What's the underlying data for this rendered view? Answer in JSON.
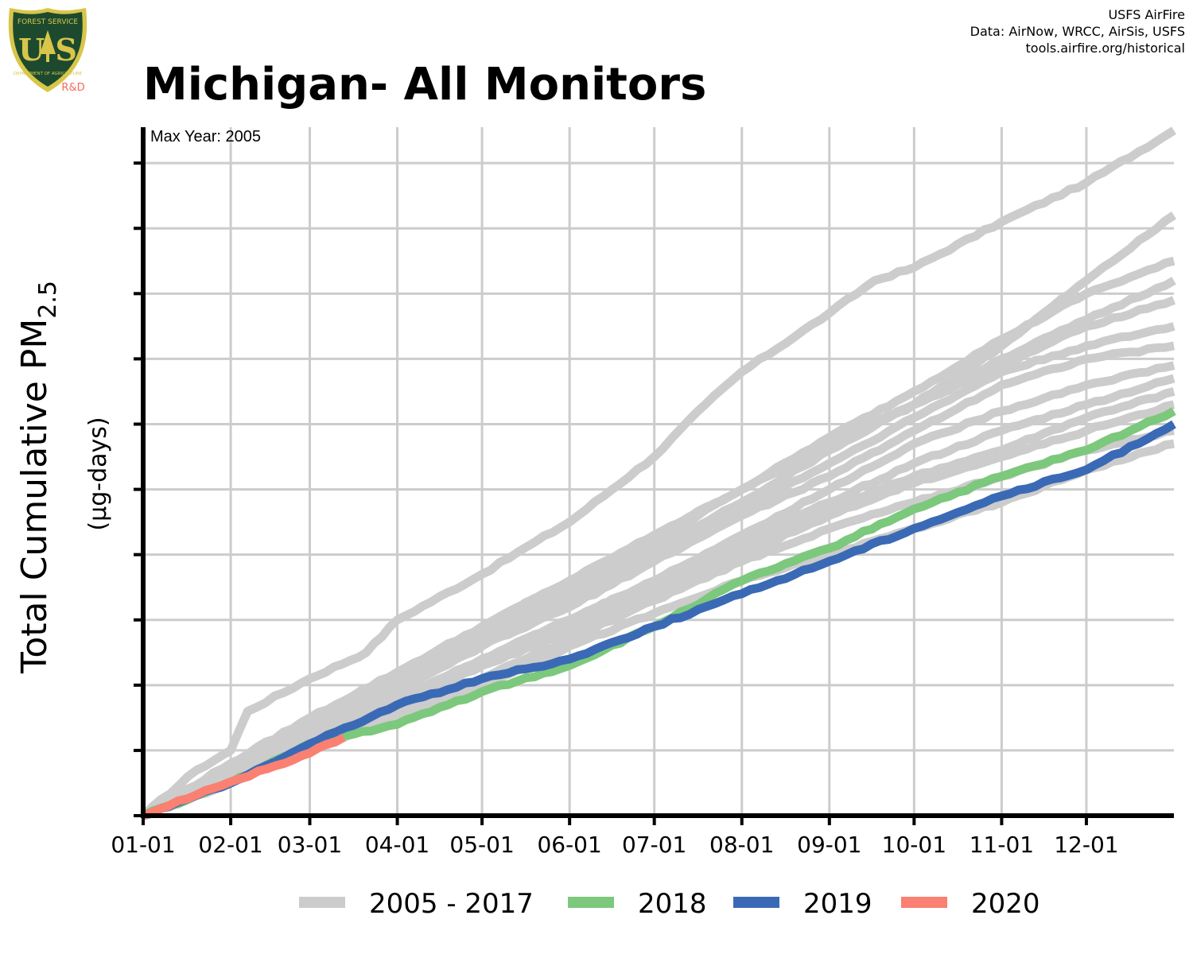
{
  "logo": {
    "arc_text_top": "FOREST SERVICE",
    "letters": "U S",
    "arc_text_bottom": "DEPARTMENT OF AGRICULTURE",
    "suffix": "R&D",
    "suffix_color": "#f26b5b",
    "shield_color": "#1d4a2e",
    "rim_color": "#d8c64a"
  },
  "title": "Michigan- All Monitors",
  "credits": [
    "USFS AirFire",
    "Data: AirNow, WRCC, AirSis, USFS",
    "tools.airfire.org/historical"
  ],
  "chart_data": {
    "type": "line",
    "title": "Michigan- All Monitors",
    "ylabel_main": "Total Cumulative PM",
    "ylabel_sub": "2.5",
    "yunits": "(µg-days)",
    "annotation": "Max Year: 2005",
    "x_tick_labels": [
      "01-01",
      "02-01",
      "03-01",
      "04-01",
      "05-01",
      "06-01",
      "07-01",
      "08-01",
      "09-01",
      "10-01",
      "11-01",
      "12-01"
    ],
    "x_tick_days": [
      1,
      32,
      60,
      91,
      121,
      152,
      182,
      213,
      244,
      274,
      305,
      335
    ],
    "xlim": [
      1,
      366
    ],
    "ylim": [
      0,
      1.055
    ],
    "y_ticks": [
      0,
      0.1,
      0.2,
      0.3,
      0.4,
      0.5,
      0.6,
      0.7,
      0.8,
      0.9,
      1.0
    ],
    "y_tick_labels_shown": false,
    "grid": true,
    "legend_position": "bottom",
    "legend": [
      {
        "label": "2005 - 2017",
        "color": "#cccccc"
      },
      {
        "label": "2018",
        "color": "#7cc87c"
      },
      {
        "label": "2019",
        "color": "#3a6ab5"
      },
      {
        "label": "2020",
        "color": "#fa8072"
      }
    ],
    "series": [
      {
        "group": "2005 - 2017",
        "color": "#cccccc",
        "x": [
          1,
          20,
          32,
          38,
          60,
          80,
          91,
          121,
          140,
          152,
          182,
          200,
          213,
          244,
          260,
          274,
          305,
          335,
          366
        ],
        "y": [
          0,
          0.07,
          0.1,
          0.16,
          0.21,
          0.25,
          0.3,
          0.37,
          0.42,
          0.45,
          0.55,
          0.63,
          0.68,
          0.77,
          0.82,
          0.84,
          0.91,
          0.97,
          1.05
        ]
      },
      {
        "group": "2005 - 2017",
        "color": "#cccccc",
        "x": [
          1,
          32,
          60,
          91,
          121,
          152,
          182,
          213,
          244,
          274,
          305,
          335,
          366
        ],
        "y": [
          0,
          0.07,
          0.14,
          0.21,
          0.29,
          0.36,
          0.43,
          0.5,
          0.57,
          0.63,
          0.72,
          0.82,
          0.92
        ]
      },
      {
        "group": "2005 - 2017",
        "color": "#cccccc",
        "x": [
          1,
          32,
          60,
          91,
          121,
          152,
          182,
          213,
          244,
          274,
          305,
          335,
          366
        ],
        "y": [
          0,
          0.08,
          0.15,
          0.22,
          0.29,
          0.36,
          0.43,
          0.5,
          0.58,
          0.65,
          0.73,
          0.8,
          0.85
        ]
      },
      {
        "group": "2005 - 2017",
        "color": "#cccccc",
        "x": [
          1,
          32,
          60,
          91,
          121,
          152,
          182,
          213,
          244,
          274,
          305,
          335,
          366
        ],
        "y": [
          0,
          0.07,
          0.14,
          0.2,
          0.28,
          0.35,
          0.42,
          0.5,
          0.57,
          0.63,
          0.7,
          0.76,
          0.82
        ]
      },
      {
        "group": "2005 - 2017",
        "color": "#cccccc",
        "x": [
          1,
          32,
          60,
          91,
          121,
          152,
          182,
          213,
          244,
          274,
          305,
          335,
          366
        ],
        "y": [
          0,
          0.07,
          0.14,
          0.21,
          0.27,
          0.34,
          0.41,
          0.48,
          0.56,
          0.63,
          0.69,
          0.75,
          0.79
        ]
      },
      {
        "group": "2005 - 2017",
        "color": "#cccccc",
        "x": [
          1,
          32,
          60,
          91,
          121,
          152,
          182,
          213,
          244,
          274,
          305,
          335,
          366
        ],
        "y": [
          0,
          0.07,
          0.13,
          0.2,
          0.26,
          0.33,
          0.4,
          0.47,
          0.54,
          0.61,
          0.68,
          0.72,
          0.75
        ]
      },
      {
        "group": "2005 - 2017",
        "color": "#cccccc",
        "x": [
          1,
          32,
          60,
          91,
          121,
          152,
          182,
          213,
          244,
          274,
          305,
          335,
          366
        ],
        "y": [
          0,
          0.07,
          0.13,
          0.19,
          0.26,
          0.32,
          0.39,
          0.46,
          0.52,
          0.59,
          0.66,
          0.7,
          0.72
        ]
      },
      {
        "group": "2005 - 2017",
        "color": "#cccccc",
        "x": [
          1,
          32,
          60,
          91,
          121,
          152,
          182,
          213,
          244,
          274,
          305,
          335,
          366
        ],
        "y": [
          0,
          0.06,
          0.12,
          0.18,
          0.24,
          0.3,
          0.36,
          0.43,
          0.5,
          0.57,
          0.62,
          0.66,
          0.69
        ]
      },
      {
        "group": "2005 - 2017",
        "color": "#cccccc",
        "x": [
          1,
          32,
          60,
          91,
          121,
          152,
          182,
          213,
          244,
          274,
          305,
          335,
          366
        ],
        "y": [
          0,
          0.06,
          0.12,
          0.18,
          0.24,
          0.3,
          0.36,
          0.42,
          0.48,
          0.54,
          0.59,
          0.63,
          0.67
        ]
      },
      {
        "group": "2005 - 2017",
        "color": "#cccccc",
        "x": [
          1,
          32,
          60,
          91,
          121,
          152,
          182,
          213,
          244,
          274,
          305,
          335,
          366
        ],
        "y": [
          0,
          0.06,
          0.12,
          0.17,
          0.23,
          0.29,
          0.35,
          0.41,
          0.47,
          0.52,
          0.56,
          0.61,
          0.65
        ]
      },
      {
        "group": "2005 - 2017",
        "color": "#cccccc",
        "x": [
          1,
          32,
          60,
          91,
          121,
          152,
          182,
          213,
          244,
          274,
          305,
          335,
          366
        ],
        "y": [
          0,
          0.06,
          0.11,
          0.17,
          0.23,
          0.28,
          0.34,
          0.4,
          0.46,
          0.51,
          0.55,
          0.59,
          0.63
        ]
      },
      {
        "group": "2005 - 2017",
        "color": "#cccccc",
        "x": [
          1,
          32,
          60,
          91,
          121,
          152,
          182,
          213,
          244,
          274,
          305,
          335,
          366
        ],
        "y": [
          0,
          0.06,
          0.11,
          0.16,
          0.21,
          0.27,
          0.33,
          0.39,
          0.44,
          0.48,
          0.52,
          0.56,
          0.59
        ]
      },
      {
        "group": "2005 - 2017",
        "color": "#cccccc",
        "x": [
          1,
          32,
          60,
          91,
          121,
          152,
          182,
          213,
          244,
          274,
          305,
          335,
          366
        ],
        "y": [
          0,
          0.05,
          0.1,
          0.15,
          0.2,
          0.26,
          0.31,
          0.36,
          0.4,
          0.44,
          0.48,
          0.53,
          0.57
        ]
      },
      {
        "group": "2018",
        "name": "2018",
        "color": "#7cc87c",
        "x": [
          1,
          32,
          60,
          91,
          121,
          152,
          182,
          213,
          244,
          274,
          305,
          335,
          366
        ],
        "y": [
          0,
          0.05,
          0.11,
          0.14,
          0.19,
          0.23,
          0.29,
          0.36,
          0.41,
          0.47,
          0.52,
          0.56,
          0.62
        ]
      },
      {
        "group": "2019",
        "name": "2019",
        "color": "#3a6ab5",
        "x": [
          1,
          32,
          60,
          91,
          121,
          152,
          182,
          213,
          244,
          274,
          305,
          335,
          366
        ],
        "y": [
          0,
          0.05,
          0.11,
          0.17,
          0.21,
          0.24,
          0.29,
          0.34,
          0.39,
          0.44,
          0.49,
          0.53,
          0.6
        ]
      },
      {
        "group": "2020",
        "name": "2020",
        "color": "#fa8072",
        "x": [
          1,
          10,
          20,
          32,
          45,
          60,
          72
        ],
        "y": [
          0,
          0.015,
          0.032,
          0.052,
          0.072,
          0.096,
          0.12
        ]
      }
    ]
  }
}
